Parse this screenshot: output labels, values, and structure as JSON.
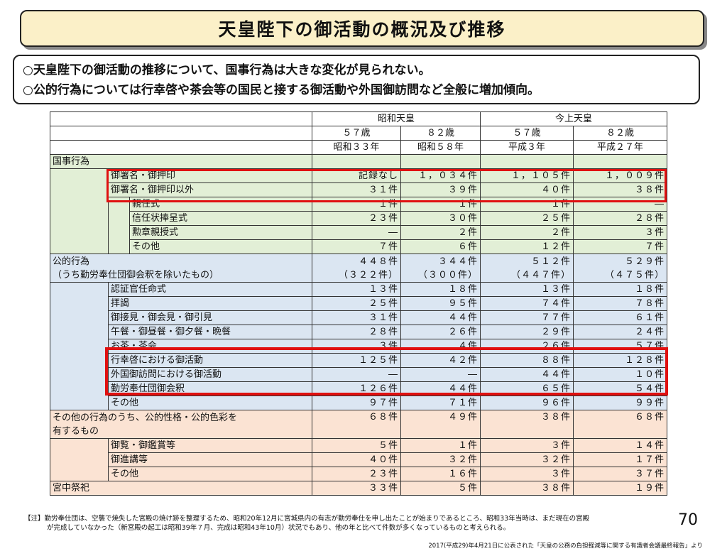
{
  "title": "天皇陛下の御活動の概況及び推移",
  "summary": {
    "line1": "○天皇陛下の御活動の推移について、国事行為は大きな変化が見られない。",
    "line2": "○公的行為については行幸啓や茶会等の国民と接する御活動や外国御訪問など全般に増加傾向。"
  },
  "header": {
    "emperor_showa": "昭和天皇",
    "emperor_current": "今上天皇",
    "ages": [
      "５７歳",
      "８２歳",
      "５７歳",
      "８２歳"
    ],
    "years": [
      "昭和３３年",
      "昭和５８年",
      "平成３年",
      "平成２７年"
    ]
  },
  "sections": {
    "kokuji": "国事行為",
    "koteki_line1": "公的行為",
    "koteki_line2": "（うち勤労奉仕団御会釈を除いたもの）",
    "other_line1": "その他の行為のうち、公的性格・公的色彩を",
    "other_line2": "有するもの",
    "kyuchu": "宮中祭祀"
  },
  "rows": {
    "kokuji": [
      {
        "label": "御署名・御押印",
        "values": [
          "記録なし",
          "１，０３４件",
          "１，１０５件",
          "１，００９件"
        ]
      },
      {
        "label": "御署名・御押印以外",
        "values": [
          "３１件",
          "３９件",
          "４０件",
          "３８件"
        ]
      },
      {
        "label": "親任式",
        "values": [
          "１件",
          "１件",
          "１件",
          "―"
        ]
      },
      {
        "label": "信任状捧呈式",
        "values": [
          "２３件",
          "３０件",
          "２５件",
          "２８件"
        ]
      },
      {
        "label": "勲章親授式",
        "values": [
          "―",
          "２件",
          "２件",
          "３件"
        ]
      },
      {
        "label": "その他",
        "values": [
          "７件",
          "６件",
          "１２件",
          "７件"
        ]
      }
    ],
    "koteki_total": [
      "４４８件",
      "３４４件",
      "５１２件",
      "５２９件"
    ],
    "koteki_sub": [
      "（３２２件）",
      "（３００件）",
      "（４４７件）",
      "（４７５件）"
    ],
    "koteki": [
      {
        "label": "認証官任命式",
        "values": [
          "１３件",
          "１８件",
          "１３件",
          "１８件"
        ]
      },
      {
        "label": "拝謁",
        "values": [
          "２５件",
          "９５件",
          "７４件",
          "７８件"
        ]
      },
      {
        "label": "御接見・御会見・御引見",
        "values": [
          "３１件",
          "４４件",
          "７７件",
          "６１件"
        ]
      },
      {
        "label": "午餐・御昼餐・御夕餐・晩餐",
        "values": [
          "２８件",
          "２６件",
          "２９件",
          "２４件"
        ]
      },
      {
        "label": "お茶・茶会",
        "values": [
          "３件",
          "４件",
          "２６件",
          "５７件"
        ]
      },
      {
        "label": "行幸啓における御活動",
        "values": [
          "１２５件",
          "４２件",
          "８８件",
          "１２８件"
        ]
      },
      {
        "label": "外国御訪問における御活動",
        "values": [
          "―",
          "―",
          "４４件",
          "１０件"
        ]
      },
      {
        "label": "勤労奉仕団御会釈",
        "values": [
          "１２６件",
          "４４件",
          "６５件",
          "５４件"
        ]
      },
      {
        "label": "その他",
        "values": [
          "９７件",
          "７１件",
          "９６件",
          "９９件"
        ]
      }
    ],
    "other_total": [
      "６８件",
      "４９件",
      "３８件",
      "６８件"
    ],
    "other": [
      {
        "label": "御覧・御鑑賞等",
        "values": [
          "５件",
          "１件",
          "３件",
          "１４件"
        ]
      },
      {
        "label": "御進講等",
        "values": [
          "４０件",
          "３２件",
          "３２件",
          "１７件"
        ]
      },
      {
        "label": "その他",
        "values": [
          "２３件",
          "１６件",
          "３件",
          "３７件"
        ]
      }
    ],
    "kyuchu": [
      "３３件",
      "５件",
      "３８件",
      "１９件"
    ]
  },
  "note": {
    "line1": "【注】勤労奉仕団は、空襲で焼失した宮殿の焼け跡を整理するため、昭和20年12月に宮城県内の有志が勤労奉仕を申し出たことが始まりであるところ、昭和33年当時は、まだ現在の宮殿",
    "line2": "が完成していなかった（新宮殿の起工は昭和39年７月、完成は昭和43年10月）状況でもあり、他の年と比べて件数が多くなっているものと考えられる。"
  },
  "page_number": "70",
  "source": "2017(平成29)年4月21日に公表された「天皇の公務の負担軽減等に関する有識者会議最終報告」より",
  "colors": {
    "title_bg": "#fbf0c8",
    "green": "#e2efd6",
    "blue": "#dbe6f2",
    "orange": "#fbe3d3",
    "highlight": "#e01010"
  }
}
